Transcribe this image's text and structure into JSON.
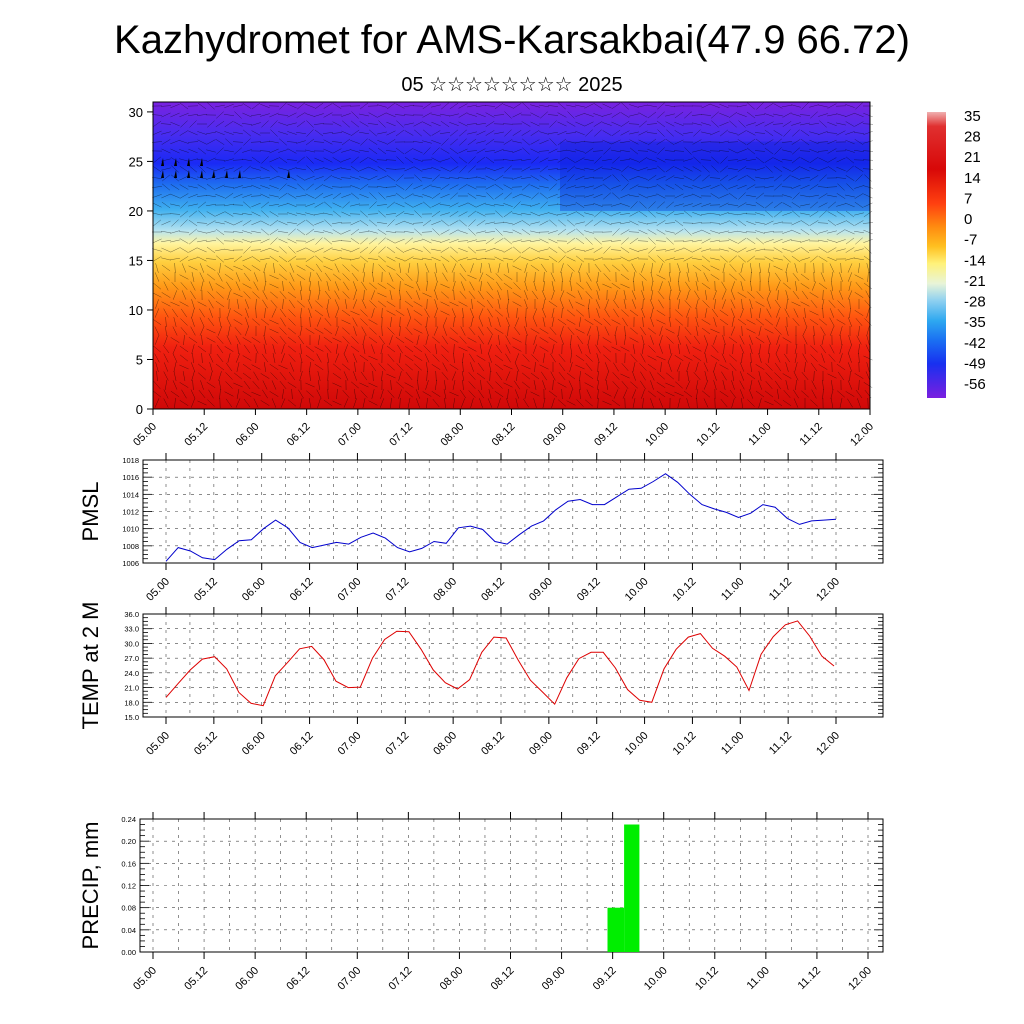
{
  "title": "Kazhydromet for AMS-Karsakbai(47.9 66.72)",
  "subtitle": "05 ☆☆☆☆☆☆☆☆ 2025",
  "time_ticks": [
    "05.00",
    "05.12",
    "06.00",
    "06.12",
    "07.00",
    "07.12",
    "08.00",
    "08.12",
    "09.00",
    "09.12",
    "10.00",
    "10.12",
    "11.00",
    "11.12",
    "12.00"
  ],
  "chart_data": [
    {
      "type": "heatmap",
      "description_axis": "height",
      "y_ticks": [
        0,
        5,
        10,
        15,
        20,
        25,
        30
      ],
      "ylim": [
        0,
        31
      ],
      "x_range": [
        "05.00",
        "12.00"
      ],
      "colorbar": {
        "labels": [
          35,
          28,
          21,
          14,
          7,
          0,
          -7,
          -14,
          -21,
          -28,
          -35,
          -42,
          -49,
          -56
        ],
        "range": [
          -60,
          38
        ],
        "colors": [
          "#6a1fe0",
          "#3a28f0",
          "#0f3ff5",
          "#1d7cf0",
          "#3fb8f0",
          "#a8ddf0",
          "#fff8b0",
          "#ffe060",
          "#ffb020",
          "#ff7a10",
          "#ff3010",
          "#e01010",
          "#c00010",
          "#f0a8a8"
        ]
      },
      "temperature_profile": [
        {
          "level": 0,
          "value": 20
        },
        {
          "level": 5,
          "value": 14
        },
        {
          "level": 10,
          "value": 6
        },
        {
          "level": 15,
          "value": -7
        },
        {
          "level": 17,
          "value": -15
        },
        {
          "level": 20,
          "value": -30
        },
        {
          "level": 25,
          "value": -48
        },
        {
          "level": 31,
          "value": -56
        }
      ]
    },
    {
      "type": "line",
      "ylabel": "PMSL",
      "y_ticks": [
        1006,
        1008,
        1010,
        1012,
        1014,
        1016,
        1018
      ],
      "ylim": [
        1006,
        1018
      ],
      "color": "#0000cc",
      "x": [
        0,
        1,
        2,
        3,
        4,
        5,
        6,
        7,
        8,
        9,
        10,
        11,
        12,
        13,
        14,
        15,
        16,
        17,
        18,
        19,
        20,
        21,
        22,
        23,
        24,
        25,
        26,
        27,
        28,
        29,
        30,
        31,
        32,
        33,
        34,
        35,
        36,
        37,
        38,
        39,
        40,
        41,
        42,
        43,
        44,
        45,
        46,
        47,
        48,
        49,
        50,
        51,
        52,
        53,
        54,
        55
      ],
      "values": [
        1006.2,
        1007.8,
        1007.4,
        1006.6,
        1006.4,
        1007.6,
        1008.6,
        1008.7,
        1010.0,
        1011.0,
        1010.1,
        1008.4,
        1007.8,
        1008.1,
        1008.4,
        1008.2,
        1009.0,
        1009.5,
        1008.9,
        1007.8,
        1007.3,
        1007.7,
        1008.5,
        1008.3,
        1010.1,
        1010.3,
        1009.9,
        1008.5,
        1008.2,
        1009.3,
        1010.3,
        1010.9,
        1012.2,
        1013.2,
        1013.4,
        1012.8,
        1012.8,
        1013.7,
        1014.6,
        1014.7,
        1015.5,
        1016.4,
        1015.4,
        1014.0,
        1012.8,
        1012.3,
        1011.9,
        1011.3,
        1011.8,
        1012.8,
        1012.5,
        1011.2,
        1010.5,
        1010.9,
        1011.0,
        1011.1
      ]
    },
    {
      "type": "line",
      "ylabel": "TEMP at 2 M",
      "y_ticks": [
        "15.0",
        "18.0",
        "21.0",
        "24.0",
        "27.0",
        "30.0",
        "33.0",
        "36.0"
      ],
      "ylim": [
        15,
        36
      ],
      "color": "#dd0000",
      "x": [
        0,
        1,
        2,
        3,
        4,
        5,
        6,
        7,
        8,
        9,
        10,
        11,
        12,
        13,
        14,
        15,
        16,
        17,
        18,
        19,
        20,
        21,
        22,
        23,
        24,
        25,
        26,
        27,
        28,
        29,
        30,
        31,
        32,
        33,
        34,
        35,
        36,
        37,
        38,
        39,
        40,
        41,
        42,
        43,
        44,
        45,
        46,
        47,
        48,
        49,
        50,
        51,
        52,
        53,
        54,
        55
      ],
      "values": [
        19.0,
        21.8,
        24.6,
        26.8,
        27.3,
        24.8,
        20.0,
        17.8,
        17.3,
        23.4,
        26.1,
        28.9,
        29.4,
        26.7,
        22.3,
        21.0,
        21.1,
        27.0,
        30.8,
        32.5,
        32.4,
        28.8,
        24.6,
        22.0,
        20.7,
        22.6,
        28.2,
        31.3,
        31.1,
        26.6,
        22.5,
        20.1,
        17.6,
        23.0,
        26.9,
        28.2,
        28.2,
        25.0,
        20.6,
        18.4,
        18.0,
        24.8,
        28.8,
        31.3,
        32.0,
        29.0,
        27.4,
        25.2,
        20.4,
        27.8,
        31.4,
        33.8,
        34.6,
        31.5,
        27.4,
        25.4
      ]
    },
    {
      "type": "bar",
      "ylabel": "PRECIP, mm",
      "y_ticks": [
        "0.00",
        "0.04",
        "0.08",
        "0.12",
        "0.16",
        "0.20",
        "0.24"
      ],
      "ylim": [
        0,
        0.24
      ],
      "color": "#00ee00",
      "bars": [
        {
          "start": 35.6,
          "end": 36.9,
          "value": 0.08
        },
        {
          "start": 36.9,
          "end": 38.1,
          "value": 0.23
        }
      ]
    }
  ]
}
